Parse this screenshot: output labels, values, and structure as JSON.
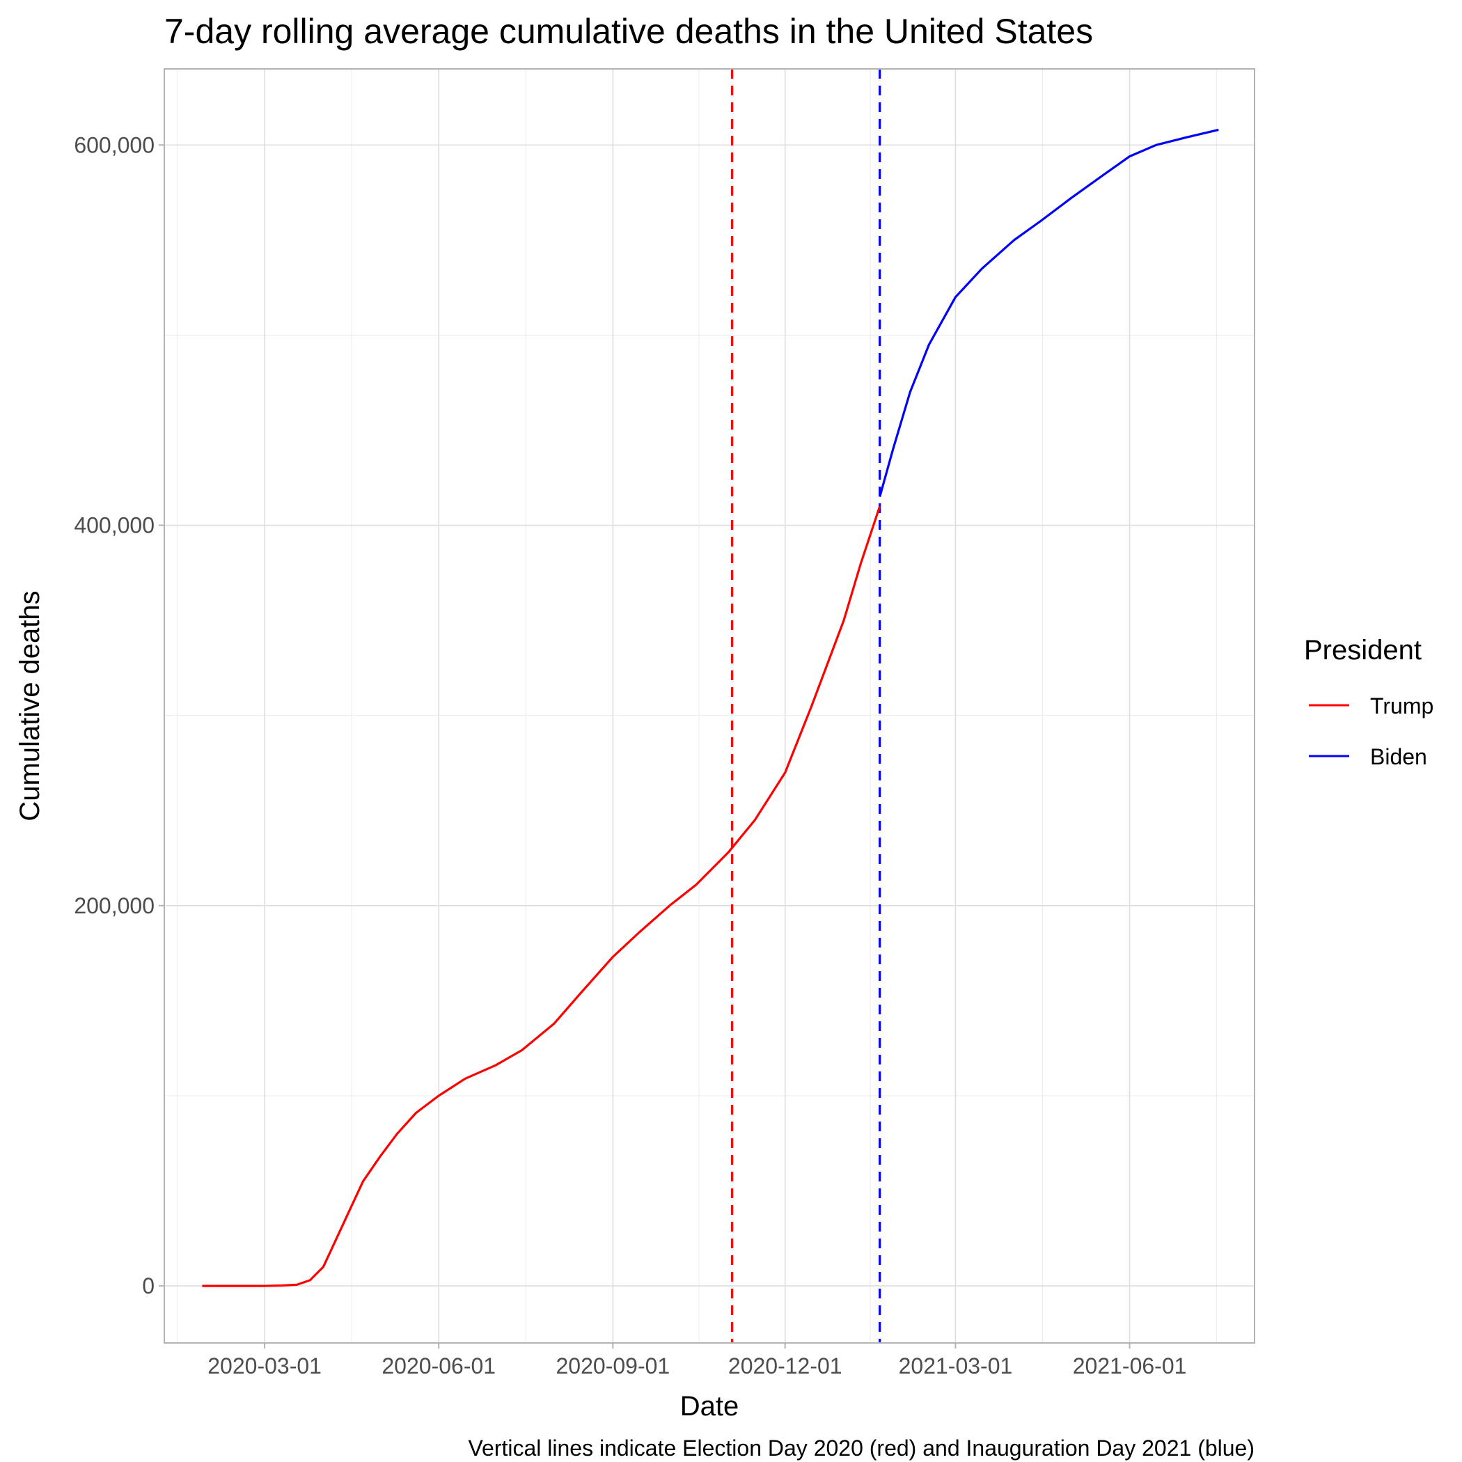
{
  "chart_data": {
    "type": "line",
    "title": "7-day rolling average cumulative deaths in the United States",
    "xlabel": "Date",
    "ylabel": "Cumulative deaths",
    "caption": "Vertical lines indicate Election Day 2020 (red) and Inauguration Day 2021 (blue)",
    "x_ticks": [
      "2020-03-01",
      "2020-06-01",
      "2020-09-01",
      "2020-12-01",
      "2021-03-01",
      "2021-06-01"
    ],
    "y_ticks": [
      0,
      200000,
      400000,
      600000
    ],
    "y_tick_labels": [
      "0",
      "200,000",
      "400,000",
      "600,000"
    ],
    "xlim": [
      "2020-01-08",
      "2021-08-06"
    ],
    "ylim": [
      -30000,
      640000
    ],
    "grid": true,
    "legend": {
      "title": "President",
      "position": "right"
    },
    "vlines": [
      {
        "x": "2020-11-03",
        "color": "#ff0000",
        "style": "dashed"
      },
      {
        "x": "2021-01-20",
        "color": "#0000ff",
        "style": "dashed"
      }
    ],
    "series": [
      {
        "name": "Trump",
        "color": "#ff0000",
        "points": [
          [
            "2020-01-28",
            0
          ],
          [
            "2020-02-15",
            0
          ],
          [
            "2020-03-01",
            0
          ],
          [
            "2020-03-10",
            200
          ],
          [
            "2020-03-18",
            600
          ],
          [
            "2020-03-25",
            3000
          ],
          [
            "2020-04-01",
            10000
          ],
          [
            "2020-04-08",
            25000
          ],
          [
            "2020-04-15",
            40000
          ],
          [
            "2020-04-22",
            55000
          ],
          [
            "2020-05-01",
            68000
          ],
          [
            "2020-05-10",
            80000
          ],
          [
            "2020-05-20",
            91000
          ],
          [
            "2020-06-01",
            100000
          ],
          [
            "2020-06-15",
            109000
          ],
          [
            "2020-07-01",
            116000
          ],
          [
            "2020-07-15",
            124000
          ],
          [
            "2020-08-01",
            138000
          ],
          [
            "2020-08-15",
            154000
          ],
          [
            "2020-09-01",
            173000
          ],
          [
            "2020-09-15",
            186000
          ],
          [
            "2020-10-01",
            200000
          ],
          [
            "2020-10-15",
            211000
          ],
          [
            "2020-11-01",
            228000
          ],
          [
            "2020-11-15",
            245000
          ],
          [
            "2020-12-01",
            270000
          ],
          [
            "2020-12-15",
            305000
          ],
          [
            "2021-01-01",
            350000
          ],
          [
            "2021-01-10",
            380000
          ],
          [
            "2021-01-20",
            410000
          ]
        ]
      },
      {
        "name": "Biden",
        "color": "#0000ff",
        "points": [
          [
            "2021-01-20",
            415000
          ],
          [
            "2021-01-27",
            440000
          ],
          [
            "2021-02-05",
            470000
          ],
          [
            "2021-02-15",
            495000
          ],
          [
            "2021-03-01",
            520000
          ],
          [
            "2021-03-15",
            535000
          ],
          [
            "2021-04-01",
            550000
          ],
          [
            "2021-04-15",
            560000
          ],
          [
            "2021-05-01",
            572000
          ],
          [
            "2021-05-15",
            582000
          ],
          [
            "2021-06-01",
            594000
          ],
          [
            "2021-06-15",
            600000
          ],
          [
            "2021-07-01",
            604000
          ],
          [
            "2021-07-18",
            608000
          ]
        ]
      }
    ]
  }
}
